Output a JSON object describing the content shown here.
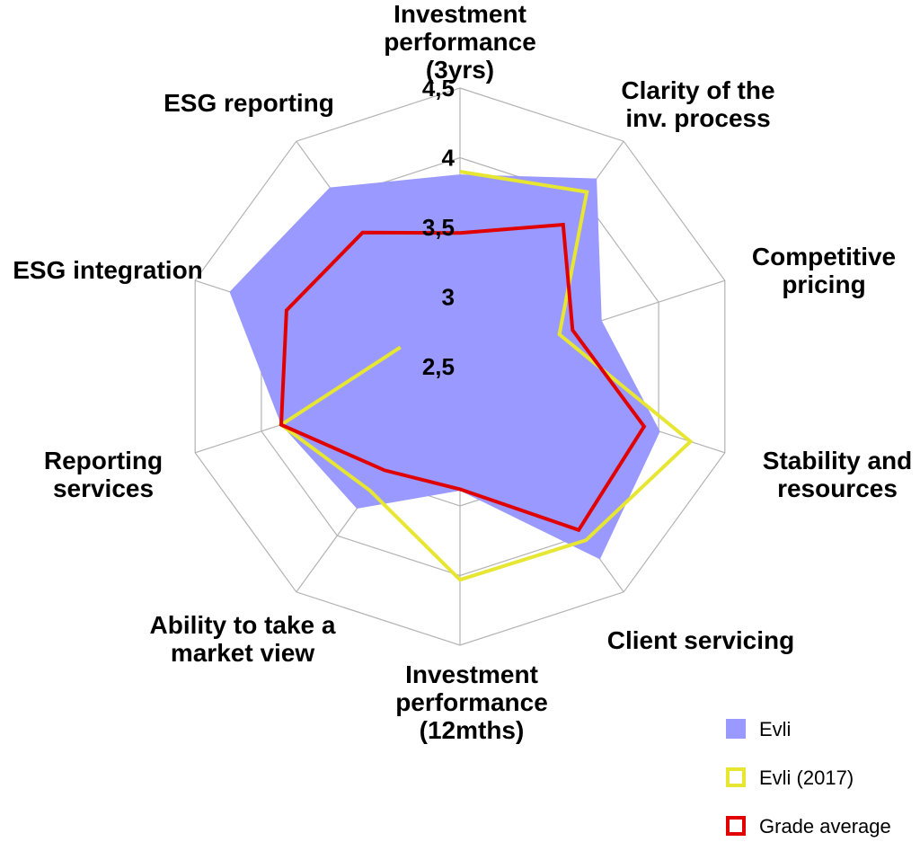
{
  "chart_data": {
    "type": "radar",
    "axes": [
      [
        "Investment",
        "performance",
        "(3yrs)"
      ],
      [
        "Clarity of the",
        "inv. process"
      ],
      [
        "Competitive",
        "pricing"
      ],
      [
        "Stability and",
        "resources"
      ],
      [
        "Client servicing"
      ],
      [
        "Investment",
        "performance",
        "(12mths)"
      ],
      [
        "Ability to take a",
        "market view"
      ],
      [
        "Reporting",
        "services"
      ],
      [
        "ESG integration"
      ],
      [
        "ESG reporting"
      ]
    ],
    "ticks": [
      "2,5",
      "3",
      "3,5",
      "4",
      "4,5"
    ],
    "range": [
      2.5,
      4.5
    ],
    "series": [
      {
        "name": "Evli",
        "style": "fill",
        "color": "#9999ff",
        "values": [
          3.88,
          4.17,
          3.57,
          4.01,
          4.21,
          3.39,
          3.76,
          3.85,
          4.24,
          4.09
        ]
      },
      {
        "name": "Evli (2017)",
        "style": "line",
        "color": "#e6e633",
        "values": [
          3.9,
          4.05,
          3.25,
          4.24,
          4.04,
          4.03,
          3.6,
          3.85,
          2.95,
          null
        ]
      },
      {
        "name": "Grade average",
        "style": "line",
        "color": "#e00000",
        "values": [
          3.46,
          3.76,
          3.35,
          3.89,
          3.95,
          3.38,
          3.42,
          3.85,
          3.81,
          3.69
        ]
      }
    ],
    "legend_position": "bottom-right",
    "grid": true
  }
}
